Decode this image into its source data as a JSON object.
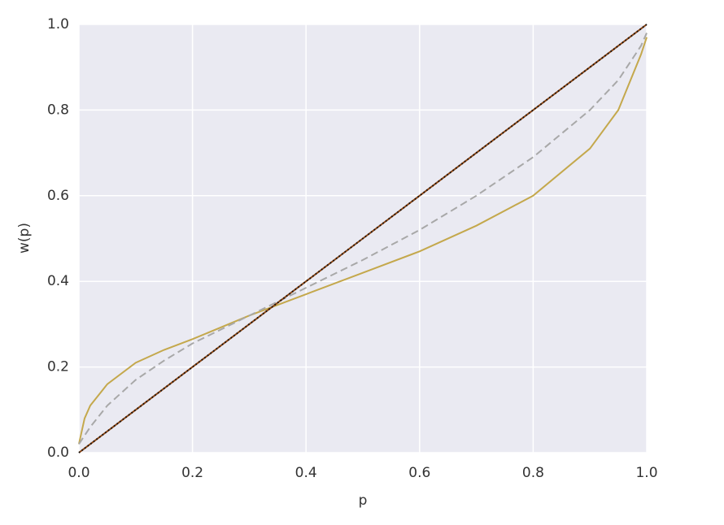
{
  "chart_data": {
    "type": "line",
    "xlabel": "p",
    "ylabel": "w(p)",
    "x": [
      0,
      0.01,
      0.02,
      0.05,
      0.1,
      0.15,
      0.2,
      0.3,
      0.4,
      0.5,
      0.6,
      0.7,
      0.8,
      0.9,
      0.95,
      0.99,
      1.0
    ],
    "series": [
      {
        "color": "#c4a84c",
        "style": "solid",
        "values": [
          0.02,
          0.08,
          0.11,
          0.16,
          0.21,
          0.24,
          0.265,
          0.32,
          0.37,
          0.42,
          0.47,
          0.53,
          0.6,
          0.71,
          0.8,
          0.93,
          0.97
        ]
      },
      {
        "color": "#a8a8a8",
        "style": "dashed",
        "values": [
          0.02,
          0.04,
          0.06,
          0.11,
          0.17,
          0.215,
          0.255,
          0.32,
          0.385,
          0.45,
          0.52,
          0.6,
          0.69,
          0.8,
          0.87,
          0.95,
          0.98
        ]
      },
      {
        "color": "#8b4513",
        "style": "solid",
        "values": [
          0,
          0.01,
          0.02,
          0.05,
          0.1,
          0.15,
          0.2,
          0.3,
          0.4,
          0.5,
          0.6,
          0.7,
          0.8,
          0.9,
          0.95,
          0.99,
          1.0
        ]
      },
      {
        "color": "#111111",
        "style": "dotted",
        "values": [
          0,
          0.01,
          0.02,
          0.05,
          0.1,
          0.15,
          0.2,
          0.3,
          0.4,
          0.5,
          0.6,
          0.7,
          0.8,
          0.9,
          0.95,
          0.99,
          1.0
        ]
      }
    ],
    "xlim": [
      0,
      1
    ],
    "ylim": [
      0,
      1
    ],
    "xticks": [
      {
        "value": 0,
        "label": "0.0"
      },
      0.2,
      0.4,
      0.6,
      0.8,
      {
        "value": 1,
        "label": "1.0"
      }
    ],
    "yticks": [
      {
        "value": 0,
        "label": "0.0"
      },
      0.2,
      0.4,
      0.6,
      0.8,
      {
        "value": 1,
        "label": "1.0"
      }
    ],
    "grid": true
  }
}
